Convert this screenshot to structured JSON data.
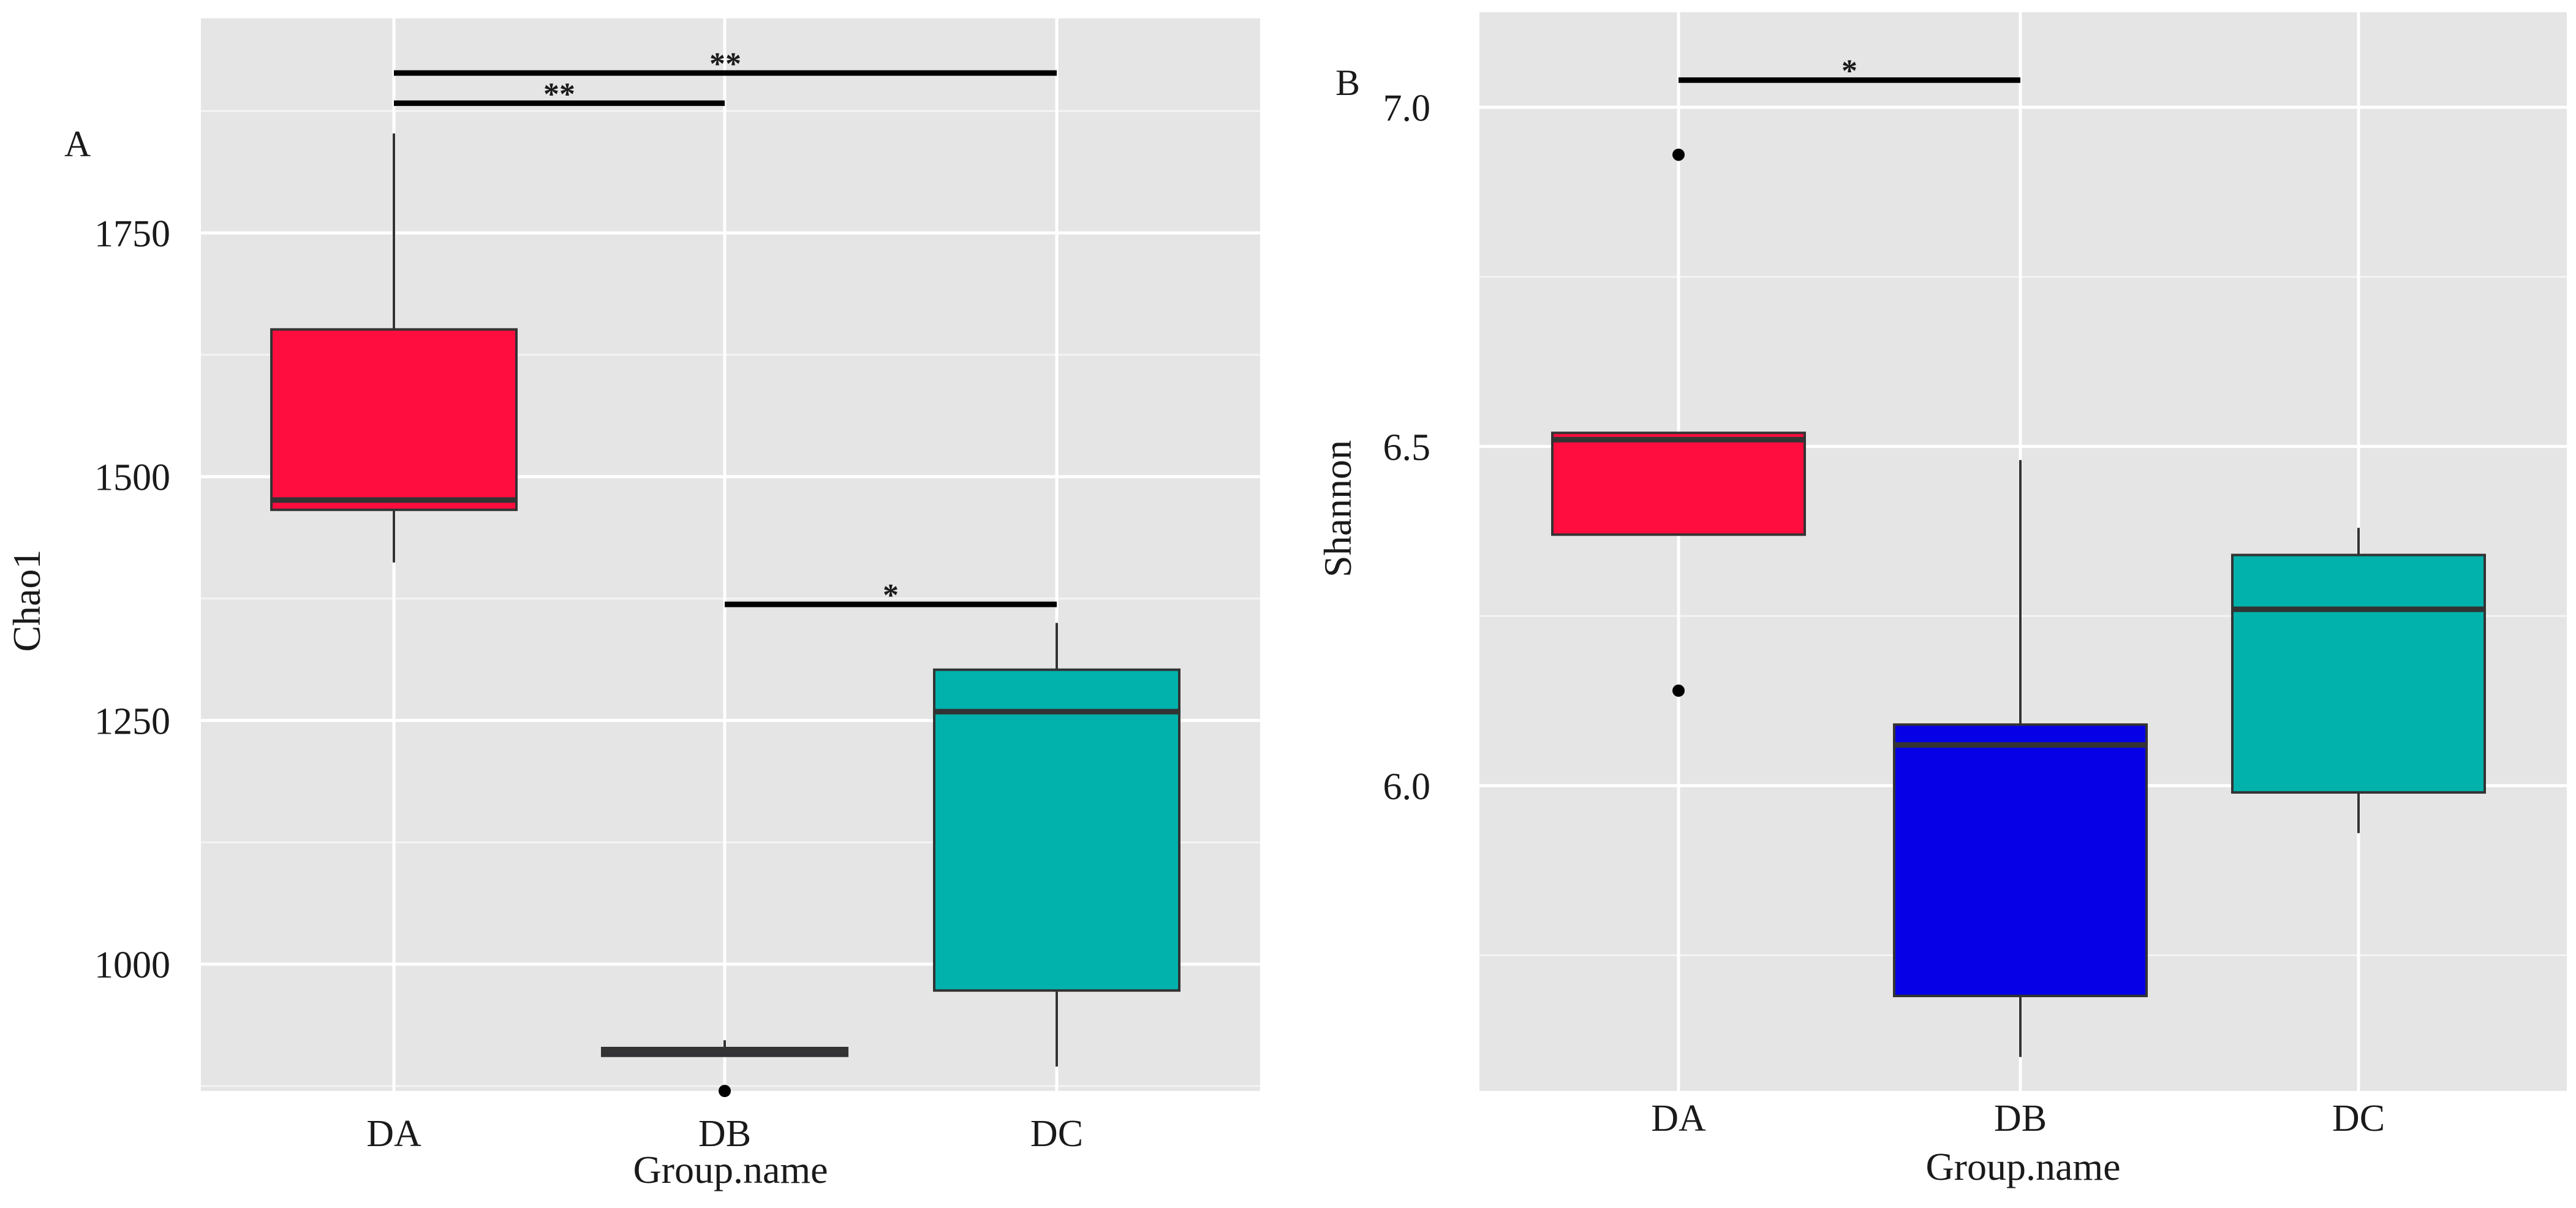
{
  "chart_data": [
    {
      "type": "box",
      "panel_label": "A",
      "xlabel": "Group.name",
      "ylabel": "Chao1",
      "ylim": [
        870,
        1970
      ],
      "categories": [
        "DA",
        "DB",
        "DC"
      ],
      "yticks": [
        1000,
        1250,
        1500,
        1750
      ],
      "ytick_labels": [
        "1000",
        "1250",
        "1500",
        "1750"
      ],
      "grid": true,
      "boxes": [
        {
          "name": "DA",
          "color": "#FF0D3F",
          "whisker_low": 1412,
          "q1": 1466,
          "median": 1476,
          "q3": 1651,
          "whisker_high": 1852,
          "outliers": []
        },
        {
          "name": "DB",
          "color": "#0500E6",
          "whisker_low": 906,
          "q1": 906,
          "median": 910,
          "q3": 914,
          "whisker_high": 922,
          "outliers": [
            870
          ]
        },
        {
          "name": "DC",
          "color": "#00B2AB",
          "whisker_low": 895,
          "q1": 973,
          "median": 1259,
          "q3": 1302,
          "whisker_high": 1350,
          "outliers": []
        }
      ],
      "significance": [
        {
          "from": "DA",
          "to": "DB",
          "y": 1883,
          "label": "**"
        },
        {
          "from": "DA",
          "to": "DC",
          "y": 1914,
          "label": "**"
        },
        {
          "from": "DB",
          "to": "DC",
          "y": 1369,
          "label": "*"
        }
      ]
    },
    {
      "type": "box",
      "panel_label": "B",
      "xlabel": "Group.name",
      "ylabel": "Shannon",
      "ylim": [
        5.55,
        7.14
      ],
      "categories": [
        "DA",
        "DB",
        "DC"
      ],
      "yticks": [
        6.0,
        6.5,
        7.0
      ],
      "ytick_labels": [
        "6.0",
        "6.5",
        "7.0"
      ],
      "grid": true,
      "boxes": [
        {
          "name": "DA",
          "color": "#FF0D3F",
          "whisker_low": 6.37,
          "q1": 6.37,
          "median": 6.51,
          "q3": 6.52,
          "whisker_high": 6.52,
          "outliers": [
            6.93,
            6.14
          ]
        },
        {
          "name": "DB",
          "color": "#0500E6",
          "whisker_low": 5.6,
          "q1": 5.69,
          "median": 6.06,
          "q3": 6.09,
          "whisker_high": 6.48,
          "outliers": []
        },
        {
          "name": "DC",
          "color": "#00B2AB",
          "whisker_low": 5.93,
          "q1": 5.99,
          "median": 6.26,
          "q3": 6.34,
          "whisker_high": 6.38,
          "outliers": []
        }
      ],
      "significance": [
        {
          "from": "DA",
          "to": "DB",
          "y": 7.04,
          "label": "*"
        }
      ]
    }
  ]
}
